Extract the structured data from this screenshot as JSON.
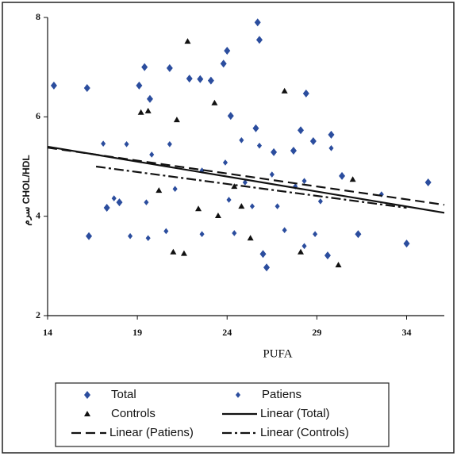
{
  "chart_data": {
    "type": "scatter",
    "x_label": "PUFA",
    "y_label": "سرم CHOL/HDL",
    "xlim": [
      14,
      36.1
    ],
    "ylim": [
      2,
      8
    ],
    "xticks": [
      14,
      19,
      24,
      29,
      34
    ],
    "yticks": [
      2,
      4,
      6,
      8
    ],
    "legend": "bottom",
    "series": [
      {
        "name": "Total",
        "color": "#2b4d9e",
        "marker": "diamond",
        "x": [
          14.35,
          16.2,
          16.3,
          17.3,
          18.0,
          19.1,
          19.4,
          19.7,
          20.8,
          21.9,
          22.5,
          23.1,
          23.8,
          24.0,
          24.2,
          25.6,
          25.7,
          25.8,
          26.0,
          26.2,
          26.6,
          27.7,
          28.1,
          28.4,
          28.8,
          29.6,
          29.8,
          30.4,
          31.3,
          34.0,
          35.2
        ],
        "values": [
          6.63,
          6.58,
          3.6,
          4.17,
          4.28,
          6.63,
          7.0,
          6.36,
          6.98,
          6.77,
          6.76,
          6.73,
          7.07,
          7.33,
          6.02,
          5.77,
          7.9,
          7.55,
          3.24,
          2.97,
          5.29,
          5.32,
          5.73,
          6.47,
          5.51,
          3.21,
          5.64,
          4.81,
          3.64,
          3.45,
          4.68
        ]
      },
      {
        "name": "Patiens",
        "color": "#2b4d9e",
        "marker": "small-diamond",
        "x": [
          17.1,
          17.7,
          18.4,
          18.6,
          19.5,
          19.6,
          19.8,
          20.6,
          20.8,
          21.1,
          22.6,
          22.6,
          23.9,
          24.1,
          24.4,
          24.8,
          25.0,
          25.4,
          25.8,
          26.5,
          26.8,
          27.2,
          27.8,
          28.3,
          28.3,
          28.9,
          29.2,
          29.8,
          32.6
        ],
        "values": [
          5.46,
          4.36,
          5.45,
          3.6,
          4.28,
          3.56,
          5.24,
          3.7,
          5.45,
          4.55,
          4.92,
          3.64,
          5.08,
          4.33,
          3.66,
          5.53,
          4.68,
          4.2,
          5.42,
          4.84,
          4.2,
          3.72,
          4.6,
          4.71,
          3.4,
          3.64,
          4.3,
          5.37,
          4.44
        ]
      },
      {
        "name": "Controls",
        "color": "#111111",
        "marker": "triangle",
        "x": [
          19.2,
          19.6,
          21.2,
          21.8,
          21.0,
          21.6,
          23.3,
          22.4,
          23.5,
          24.4,
          27.2,
          28.1,
          30.2,
          31.0,
          20.2,
          24.8,
          25.3
        ],
        "values": [
          6.09,
          6.12,
          5.94,
          7.52,
          3.28,
          3.25,
          6.28,
          4.15,
          4.01,
          4.6,
          6.52,
          3.28,
          3.02,
          4.74,
          4.52,
          4.2,
          3.56
        ]
      },
      {
        "name": "Linear (Total)",
        "color": "#111111",
        "line": "solid",
        "x": [
          14,
          36.1
        ],
        "values": [
          5.4,
          4.07
        ]
      },
      {
        "name": "Linear (Patiens)",
        "color": "#111111",
        "line": "dashed",
        "x": [
          14,
          36.1
        ],
        "values": [
          5.38,
          4.23
        ]
      },
      {
        "name": "Linear (Controls)",
        "color": "#111111",
        "line": "dashdot",
        "x": [
          16.7,
          34
        ],
        "values": [
          5.0,
          4.17
        ]
      }
    ]
  }
}
